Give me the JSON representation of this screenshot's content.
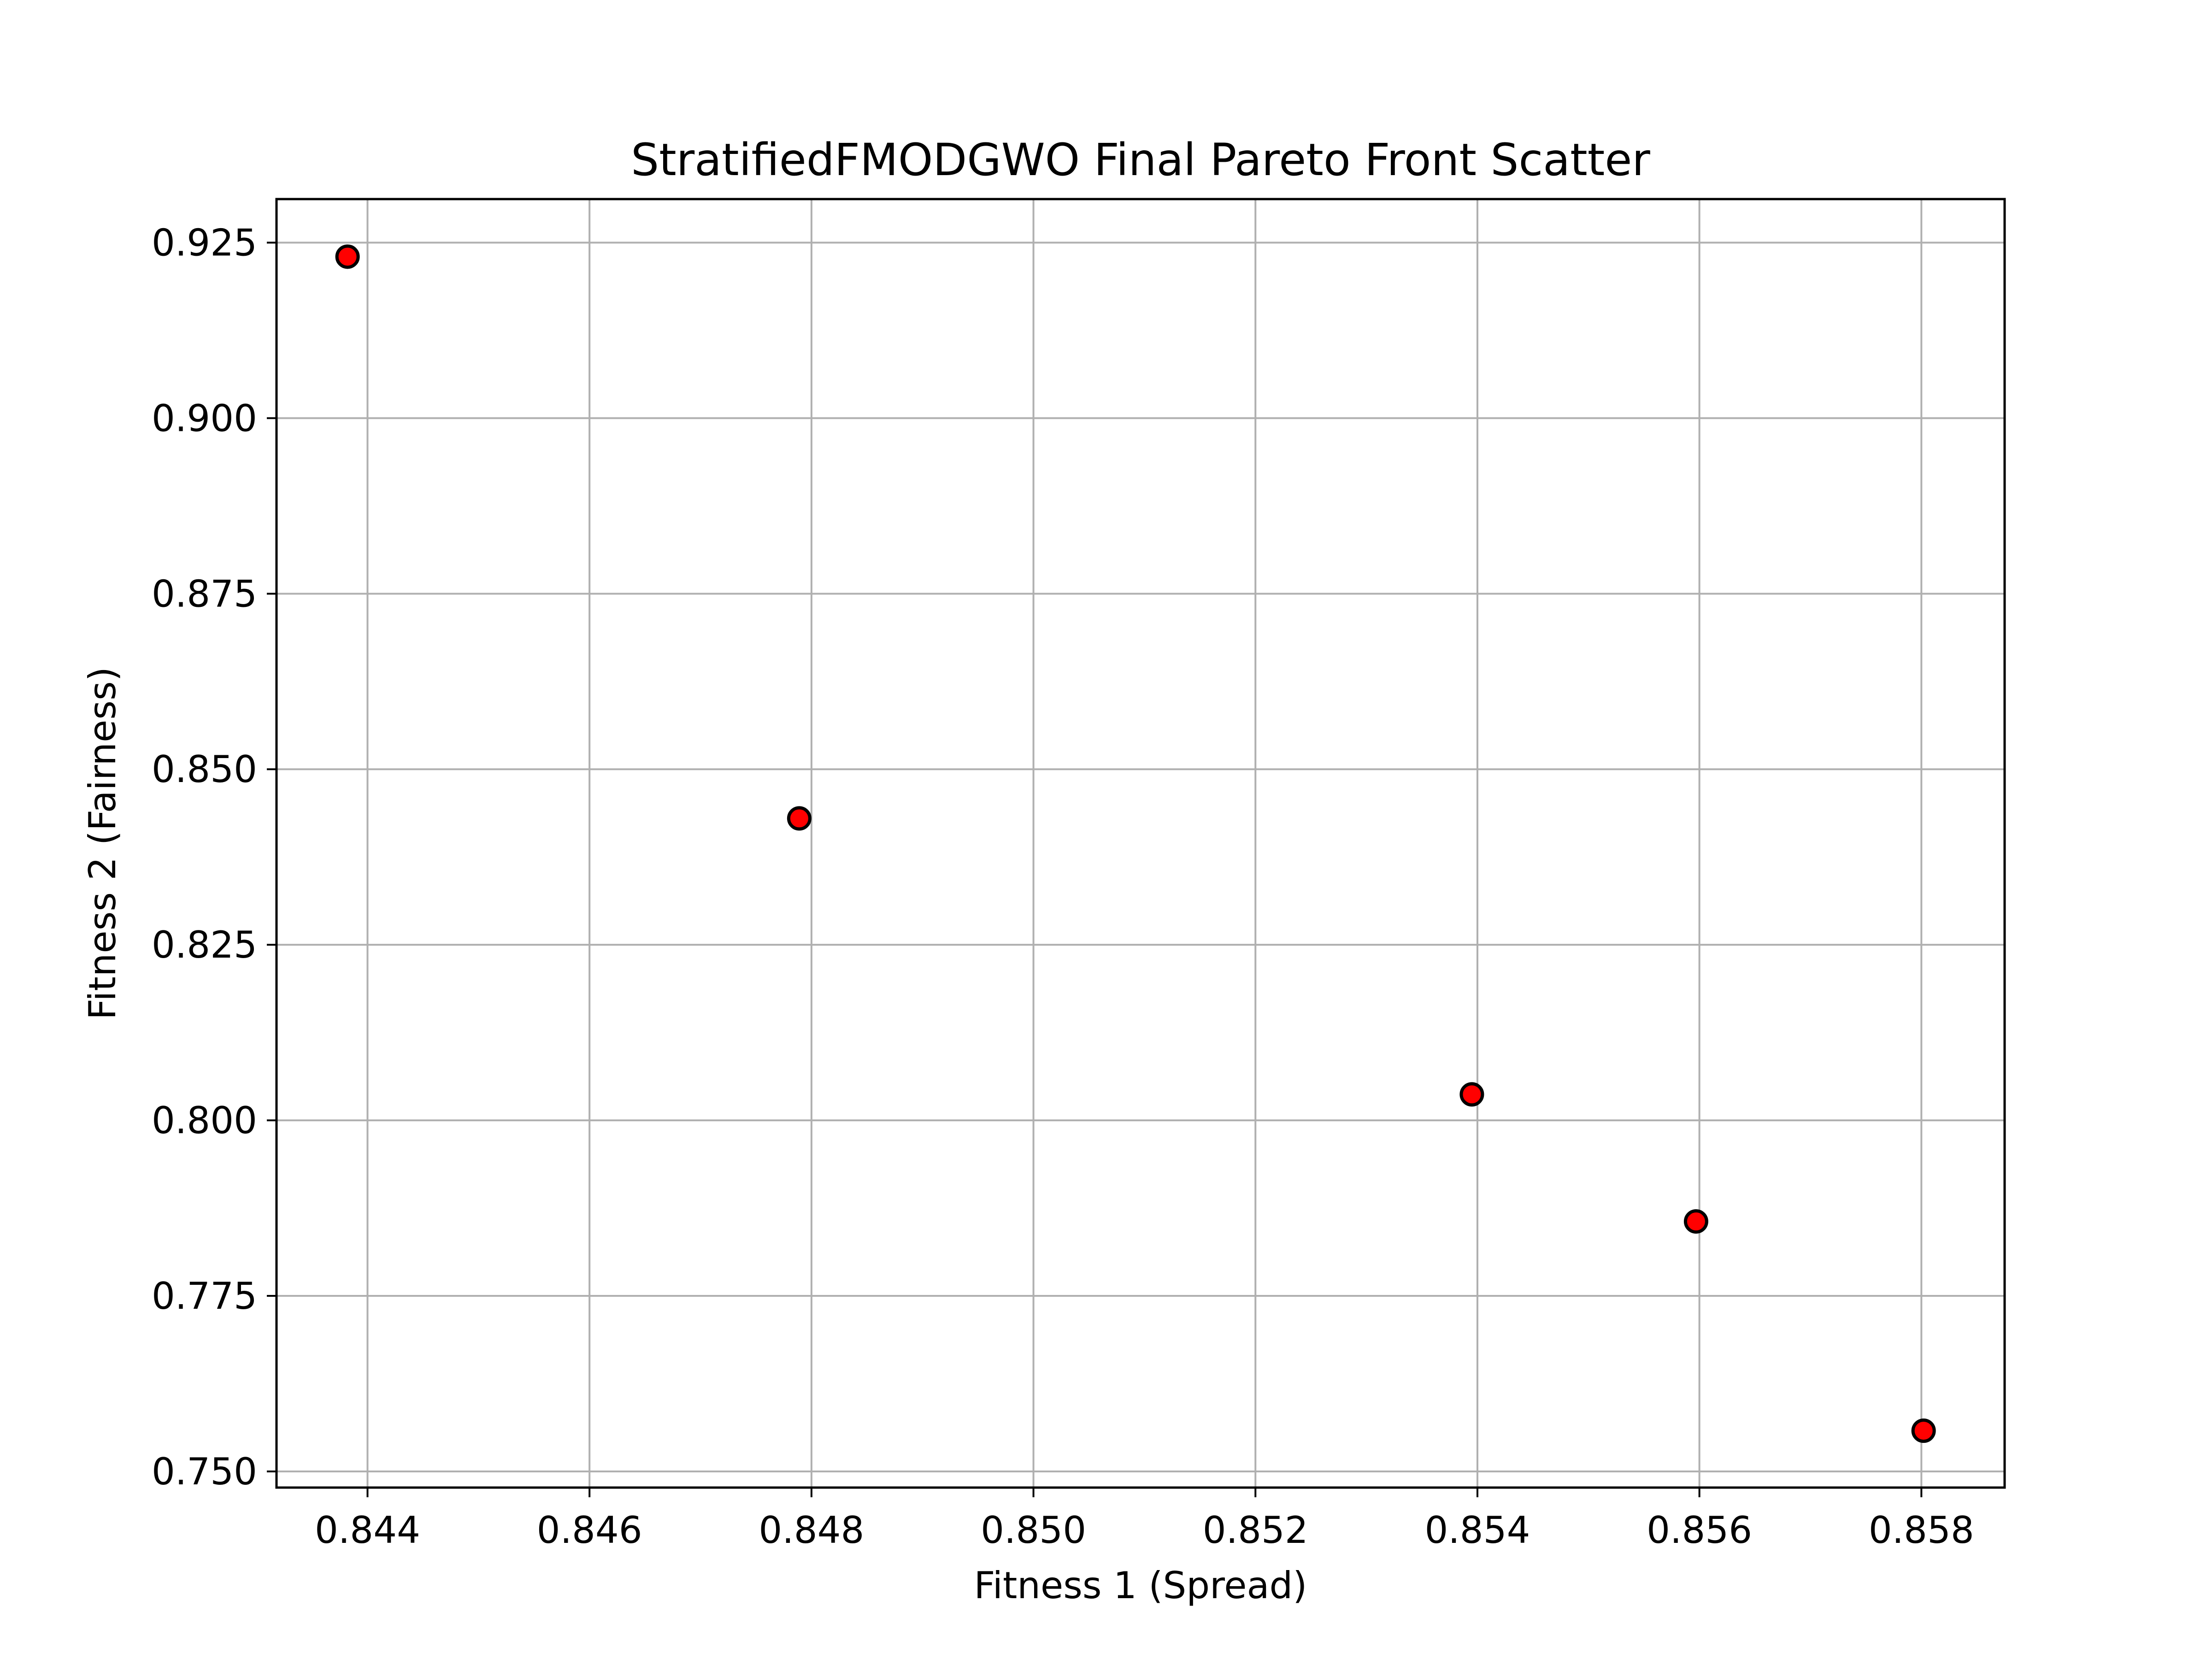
{
  "chart_data": {
    "type": "scatter",
    "title": "StratifiedFMODGWO Final Pareto Front Scatter",
    "xlabel": "Fitness 1 (Spread)",
    "ylabel": "Fitness 2 (Fairness)",
    "xlim": [
      0.84318,
      0.85875
    ],
    "ylim": [
      0.7477,
      0.9312
    ],
    "xticks": [
      "0.844",
      "0.846",
      "0.848",
      "0.850",
      "0.852",
      "0.854",
      "0.856",
      "0.858"
    ],
    "xtick_values": [
      0.844,
      0.846,
      0.848,
      0.85,
      0.852,
      0.854,
      0.856,
      0.858
    ],
    "yticks": [
      "0.750",
      "0.775",
      "0.800",
      "0.825",
      "0.850",
      "0.875",
      "0.900",
      "0.925"
    ],
    "ytick_values": [
      0.75,
      0.775,
      0.8,
      0.825,
      0.85,
      0.875,
      0.9,
      0.925
    ],
    "grid": true,
    "legend": "none",
    "marker_color": "#ff0000",
    "marker_edge_color": "#000000",
    "points": [
      {
        "x": 0.84382,
        "y": 0.923
      },
      {
        "x": 0.84789,
        "y": 0.843
      },
      {
        "x": 0.85395,
        "y": 0.8037
      },
      {
        "x": 0.85597,
        "y": 0.7856
      },
      {
        "x": 0.85802,
        "y": 0.7558
      }
    ]
  }
}
